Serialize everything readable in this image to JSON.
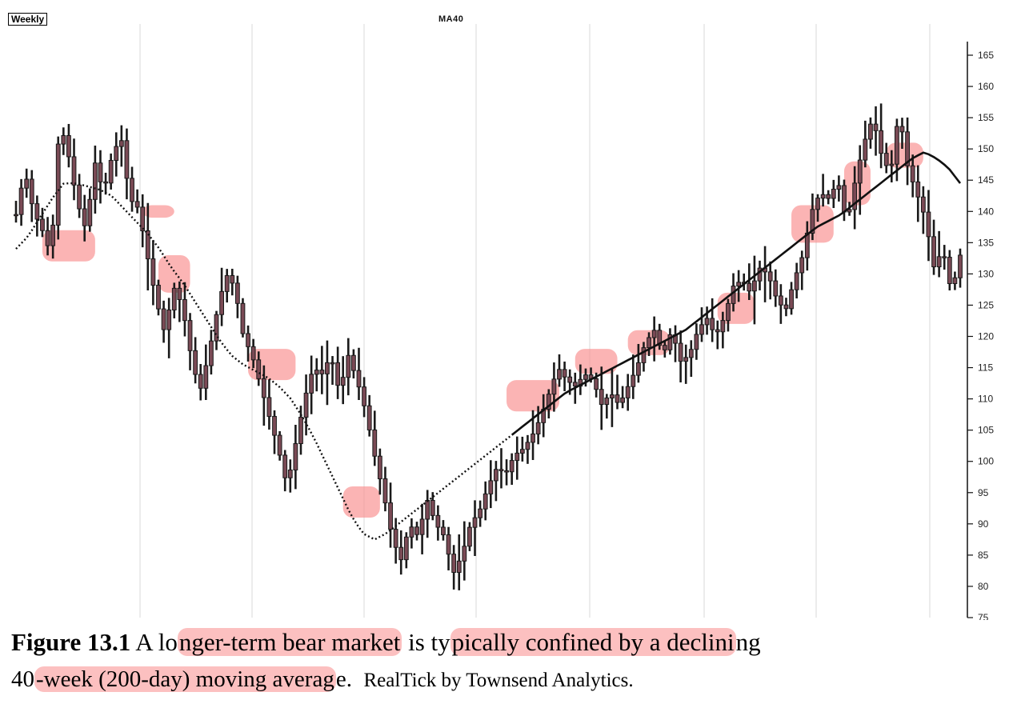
{
  "header": {
    "period_tag": "Weekly",
    "indicator_label": "MA40"
  },
  "chart_data": {
    "type": "line",
    "series": [
      {
        "values": [
          139.5,
          146.5,
          140,
          137,
          133,
          154.5,
          149,
          141.5,
          137,
          148,
          143,
          149,
          152,
          142,
          140.5,
          133,
          126,
          120.5,
          128,
          125,
          117,
          111,
          117,
          124,
          130,
          128,
          120,
          117,
          112,
          107,
          102,
          96,
          103,
          110,
          115,
          114,
          117,
          111,
          117,
          113,
          108,
          101,
          95,
          88,
          84,
          90,
          88,
          94,
          90,
          88,
          82,
          85,
          90,
          92,
          96,
          99,
          98,
          101,
          102,
          104,
          107,
          111,
          115,
          113,
          112,
          114,
          113,
          109,
          111,
          109,
          112,
          115,
          119,
          121,
          117,
          121,
          116,
          117,
          121,
          123,
          120,
          123,
          128,
          129,
          127,
          131,
          130,
          126,
          124,
          129,
          133,
          140,
          143,
          142,
          145,
          138,
          145,
          151,
          155,
          149,
          146,
          156,
          147,
          143,
          139,
          131,
          134,
          127,
          133
        ]
      },
      {
        "name": "MA40",
        "values": [
          134,
          136,
          139,
          142,
          144.5,
          144.5,
          144,
          143.5,
          142.5,
          140.5,
          138.5,
          136.5,
          134,
          131,
          128.5,
          125.5,
          122.5,
          119.5,
          117,
          115.5,
          114.5,
          113.5,
          112,
          110,
          107,
          103.5,
          99.5,
          95.5,
          91.5,
          88.5,
          87.5,
          88.5,
          90,
          91.5,
          93,
          94.5,
          96,
          97.5,
          99,
          100.5,
          102,
          103.5,
          105,
          106.5,
          108,
          109.5,
          111,
          112,
          113,
          114,
          115,
          116,
          117,
          118,
          119,
          120,
          121,
          122.5,
          124,
          125.5,
          127,
          128.5,
          130,
          131.5,
          133,
          134.5,
          136,
          137.5,
          138.5,
          139.5,
          141,
          142.5,
          144,
          145.5,
          147,
          148.5,
          149.5,
          148.5,
          147,
          144.5
        ]
      }
    ],
    "ylim": [
      75,
      167
    ],
    "y_ticks": [
      75,
      80,
      85,
      90,
      95,
      100,
      105,
      110,
      115,
      120,
      125,
      130,
      135,
      140,
      145,
      150,
      155,
      160,
      165
    ],
    "highlight_zones": [
      {
        "x_range": [
          5,
          15
        ],
        "y_range": [
          132,
          137
        ]
      },
      {
        "x_range": [
          24,
          30
        ],
        "y_range": [
          139,
          141
        ]
      },
      {
        "x_range": [
          27,
          33
        ],
        "y_range": [
          127,
          133
        ]
      },
      {
        "x_range": [
          44,
          53
        ],
        "y_range": [
          113,
          118
        ]
      },
      {
        "x_range": [
          62,
          69
        ],
        "y_range": [
          91,
          96
        ]
      },
      {
        "x_range": [
          93,
          103
        ],
        "y_range": [
          108,
          113
        ]
      },
      {
        "x_range": [
          106,
          114
        ],
        "y_range": [
          114,
          118
        ]
      },
      {
        "x_range": [
          116,
          124
        ],
        "y_range": [
          117,
          121
        ]
      },
      {
        "x_range": [
          133,
          140
        ],
        "y_range": [
          122,
          127
        ]
      },
      {
        "x_range": [
          147,
          155
        ],
        "y_range": [
          135,
          141
        ]
      },
      {
        "x_range": [
          157,
          162
        ],
        "y_range": [
          141,
          148
        ]
      },
      {
        "x_range": [
          165,
          172
        ],
        "y_range": [
          147,
          151
        ]
      }
    ],
    "grid": "vertical"
  },
  "caption": {
    "figure_number": "Figure 13.1",
    "line1_a": "A lo",
    "line1_hl1": "nger-term bear market",
    "line1_b": " is ty",
    "line1_hl2": "pically confined by a declini",
    "line1_c": "ng",
    "line2_a": "40",
    "line2_hl": "-week (200-day) moving averag",
    "line2_b": "e.",
    "source": "RealTick by Townsend Analytics."
  },
  "colors": {
    "highlight": "#f98c8c",
    "price_bars": "#1a1a1a",
    "candle_fill": "#7a4a55"
  }
}
